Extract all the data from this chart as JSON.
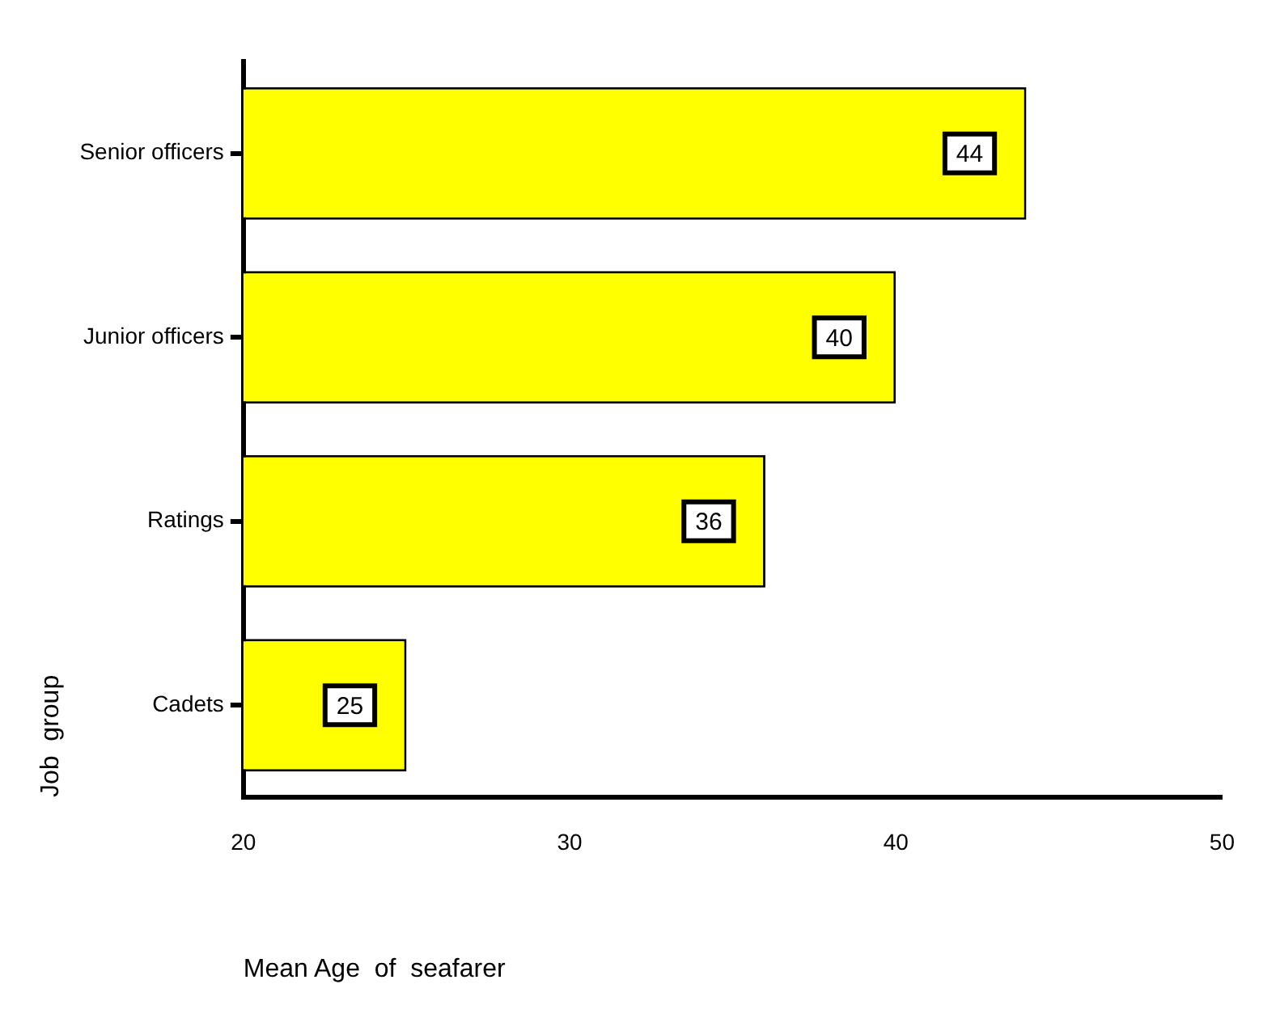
{
  "chart_data": {
    "type": "bar",
    "orientation": "horizontal",
    "categories": [
      "Senior officers",
      "Junior officers",
      "Ratings",
      "Cadets"
    ],
    "values": [
      44,
      40,
      36,
      25
    ],
    "color": "#ffff00",
    "xlim": [
      20,
      50
    ],
    "xticks": [
      20,
      30,
      40,
      50
    ],
    "xlabel": "Mean Age  of  seafarer",
    "ylabel": "Job  group",
    "data_labels": true,
    "grid": false,
    "legend": false
  }
}
